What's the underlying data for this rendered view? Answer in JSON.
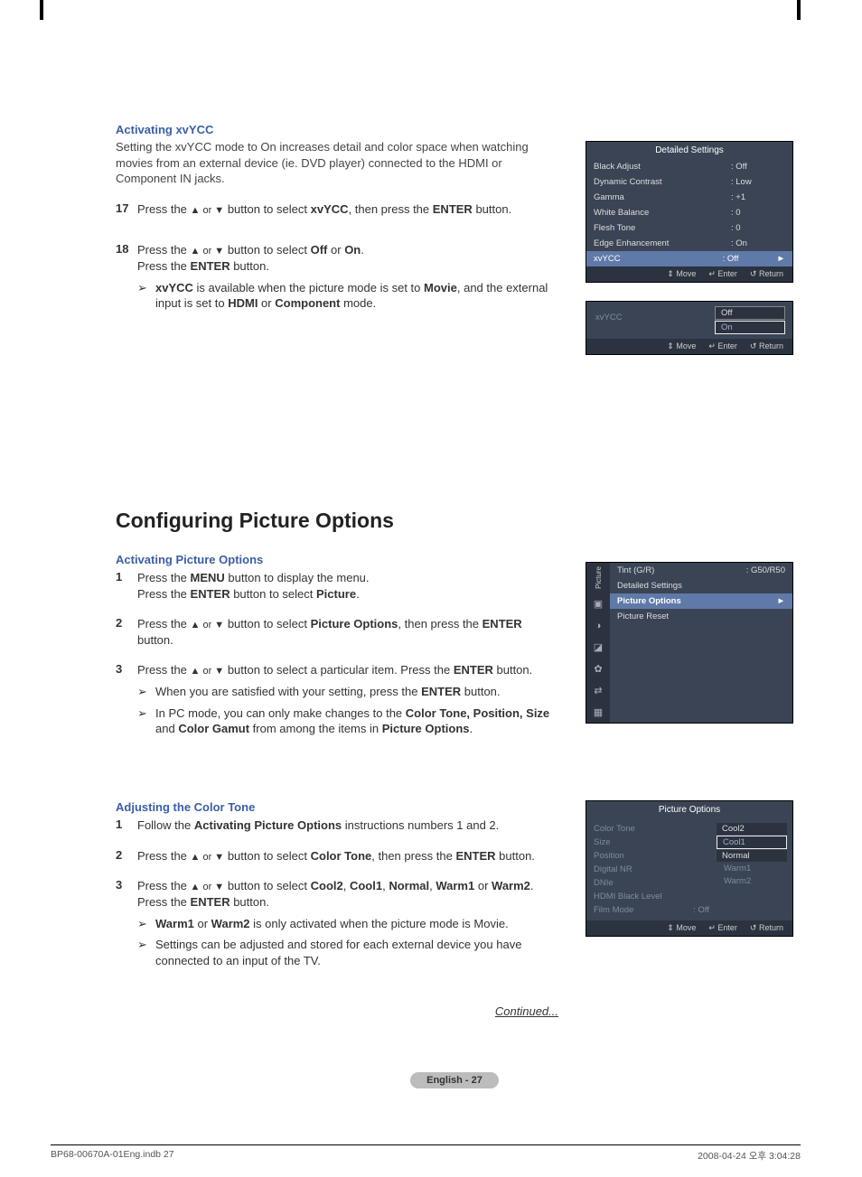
{
  "section1": {
    "title": "Activating xvYCC",
    "intro": "Setting the xvYCC mode to On increases detail and color space when watching movies from an external device (ie. DVD player) connected to the HDMI or Component IN jacks.",
    "step17_num": "17",
    "step17_pre": "Press the ",
    "step17_mid": " button to select ",
    "step17_b1": "xvYCC",
    "step17_mid2": ", then press the ",
    "step17_b2": "ENTER",
    "step17_post": " button.",
    "step18_num": "18",
    "step18_pre": "Press the ",
    "step18_mid": " button to select ",
    "step18_b1": "Off",
    "step18_or": " or ",
    "step18_b2": "On",
    "step18_post": ".",
    "step18_line2_pre": "Press the ",
    "step18_line2_b": "ENTER",
    "step18_line2_post": " button.",
    "note_b1": "xvYCC",
    "note_a": " is available when the picture mode is set to ",
    "note_b2": "Movie",
    "note_b": ", and the external input is set to ",
    "note_b3": "HDMI",
    "note_c": " or ",
    "note_b4": "Component",
    "note_d": " mode."
  },
  "osd1": {
    "title": "Detailed Settings",
    "rows": [
      {
        "label": "Black Adjust",
        "value": ": Off"
      },
      {
        "label": "Dynamic Contrast",
        "value": ": Low"
      },
      {
        "label": "Gamma",
        "value": ": +1"
      },
      {
        "label": "White Balance",
        "value": ": 0"
      },
      {
        "label": "Flesh Tone",
        "value": ": 0"
      },
      {
        "label": "Edge Enhancement",
        "value": ": On"
      },
      {
        "label": "xvYCC",
        "value": ": Off"
      }
    ],
    "foot_move": "Move",
    "foot_enter": "Enter",
    "foot_return": "Return"
  },
  "osd2": {
    "label": "xvYCC",
    "opt_off": "Off",
    "opt_on": "On",
    "foot_move": "Move",
    "foot_enter": "Enter",
    "foot_return": "Return"
  },
  "h1": "Configuring Picture Options",
  "section2": {
    "title": "Activating Picture Options",
    "s1_num": "1",
    "s1_a": "Press the ",
    "s1_b1": "MENU",
    "s1_b": " button to display the menu.",
    "s1_c": "Press the ",
    "s1_b2": "ENTER",
    "s1_d": " button to select ",
    "s1_b3": "Picture",
    "s1_e": ".",
    "s2_num": "2",
    "s2_a": "Press the ",
    "s2_b": " button to select ",
    "s2_b1": "Picture Options",
    "s2_c": ", then press the ",
    "s2_b2": "ENTER",
    "s2_d": " button.",
    "s3_num": "3",
    "s3_a": "Press the ",
    "s3_b": " button to select a particular item. Press the ",
    "s3_b1": "ENTER",
    "s3_c": " button.",
    "note1_a": "When you are satisfied with your setting, press the ",
    "note1_b": "ENTER",
    "note1_c": " button.",
    "note2_a": "In PC mode, you can only make changes to the ",
    "note2_b1": "Color Tone, Position, Size",
    "note2_b": " and ",
    "note2_b2": "Color Gamut",
    "note2_c": " from among the items in ",
    "note2_b3": "Picture Options",
    "note2_d": "."
  },
  "osd3": {
    "side_label": "Picture",
    "row1_label": "Tint (G/R)",
    "row1_value": ": G50/R50",
    "row2_label": "Detailed Settings",
    "row3_label": "Picture Options",
    "row4_label": "Picture Reset"
  },
  "section3": {
    "title": "Adjusting the Color Tone",
    "s1_num": "1",
    "s1_a": "Follow the ",
    "s1_b": "Activating Picture Options",
    "s1_c": " instructions numbers 1 and 2.",
    "s2_num": "2",
    "s2_a": "Press the ",
    "s2_b": " button to select ",
    "s2_b1": "Color Tone",
    "s2_c": ", then press the ",
    "s2_b2": "ENTER",
    "s2_d": " button.",
    "s3_num": "3",
    "s3_a": "Press the ",
    "s3_b": " button to select ",
    "s3_b1": "Cool2",
    "s3_c": ", ",
    "s3_b2": "Cool1",
    "s3_d": ", ",
    "s3_b3": "Normal",
    "s3_e": ", ",
    "s3_b4": "Warm1",
    "s3_f": " or ",
    "s3_b5": "Warm2",
    "s3_g": ".",
    "s3_line2_a": "Press the ",
    "s3_line2_b": "ENTER",
    "s3_line2_c": " button.",
    "note1_b1": "Warm1",
    "note1_a": " or ",
    "note1_b2": "Warm2",
    "note1_b": " is only activated when the picture mode is Movie.",
    "note2": "Settings can be adjusted and stored for each external device you have connected to an input of the TV."
  },
  "osd4": {
    "title": "Picture Options",
    "labels": [
      "Color Tone",
      "Size",
      "Position",
      "Digital NR",
      "DNIe",
      "HDMI Black Level",
      "Film Mode"
    ],
    "film_val": ": Off",
    "opts": [
      "Cool2",
      "Cool1",
      "Normal",
      "Warm1",
      "Warm2"
    ],
    "foot_move": "Move",
    "foot_enter": "Enter",
    "foot_return": "Return"
  },
  "continued": "Continued...",
  "page_foot": "English - 27",
  "meta_left": "BP68-00670A-01Eng.indb   27",
  "meta_right": "2008-04-24   오후 3:04:28",
  "glyphs": {
    "up": "▲",
    "down": "▼",
    "updown": "▲ or ▼",
    "enter": "↵",
    "return": "↺",
    "move": "⇕",
    "arrow": "➢",
    "play": "►"
  }
}
